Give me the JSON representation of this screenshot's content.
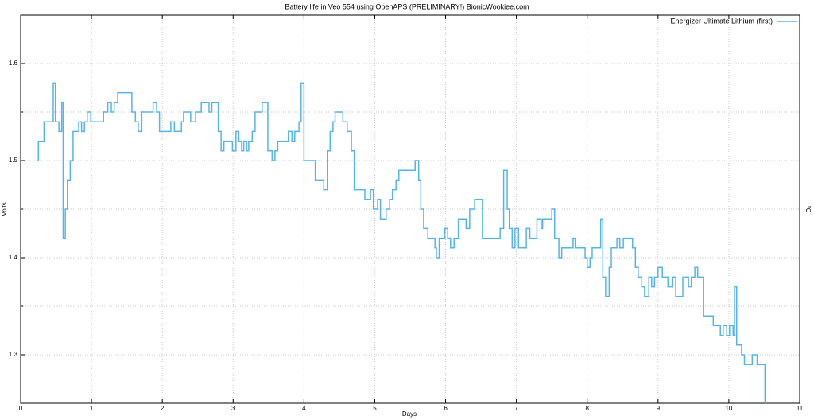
{
  "chart_data": {
    "type": "step",
    "title": "Battery life in Veo 554 using OpenAPS (PRELIMINARY!) BionicWookiee.com",
    "x_label": "Days",
    "y_label": "Volts",
    "y2_label": "°C",
    "xlim": [
      0,
      11
    ],
    "xticks": [
      0,
      1,
      2,
      3,
      4,
      5,
      6,
      7,
      8,
      9,
      10,
      11
    ],
    "ylim": [
      1.25,
      1.65
    ],
    "yticks": [
      1.3,
      1.4,
      1.5,
      1.6
    ],
    "yminorticks": [
      1.35,
      1.45,
      1.55
    ],
    "grid": true,
    "legend": "top-right",
    "series": [
      {
        "name": "Energizer Ultimate Lithium (first)",
        "color": "#56b4e9",
        "x": [
          0.24,
          0.25,
          0.33,
          0.46,
          0.49,
          0.54,
          0.58,
          0.6,
          0.63,
          0.66,
          0.7,
          0.74,
          0.82,
          0.86,
          0.9,
          0.94,
          0.99,
          1.17,
          1.23,
          1.28,
          1.32,
          1.37,
          1.57,
          1.62,
          1.66,
          1.71,
          1.87,
          1.92,
          1.96,
          2.12,
          2.17,
          2.27,
          2.3,
          2.4,
          2.47,
          2.55,
          2.66,
          2.7,
          2.79,
          2.83,
          2.87,
          2.99,
          3.04,
          3.08,
          3.12,
          3.15,
          3.19,
          3.22,
          3.27,
          3.31,
          3.41,
          3.49,
          3.55,
          3.59,
          3.63,
          3.78,
          3.83,
          3.87,
          3.93,
          3.96,
          4.0,
          4.16,
          4.28,
          4.33,
          4.37,
          4.41,
          4.44,
          4.55,
          4.61,
          4.67,
          4.71,
          4.86,
          4.94,
          4.98,
          5.04,
          5.08,
          5.16,
          5.21,
          5.25,
          5.3,
          5.34,
          5.57,
          5.62,
          5.65,
          5.69,
          5.75,
          5.85,
          5.87,
          5.91,
          5.99,
          6.03,
          6.07,
          6.12,
          6.18,
          6.29,
          6.34,
          6.41,
          6.52,
          6.77,
          6.82,
          6.87,
          6.9,
          6.94,
          6.98,
          7.03,
          7.14,
          7.19,
          7.29,
          7.35,
          7.37,
          7.5,
          7.54,
          7.6,
          7.64,
          7.8,
          7.83,
          7.97,
          8.0,
          8.04,
          8.07,
          8.19,
          8.22,
          8.26,
          8.31,
          8.34,
          8.42,
          8.46,
          8.51,
          8.64,
          8.68,
          8.72,
          8.77,
          8.81,
          8.87,
          8.91,
          8.95,
          9.0,
          9.06,
          9.14,
          9.2,
          9.25,
          9.35,
          9.43,
          9.47,
          9.52,
          9.56,
          9.64,
          9.78,
          9.88,
          9.92,
          9.97,
          10.01,
          10.06,
          10.08,
          10.11,
          10.18,
          10.22,
          10.33,
          10.4,
          10.51
        ],
        "values": [
          1.5,
          1.52,
          1.54,
          1.58,
          1.54,
          1.53,
          1.56,
          1.42,
          1.45,
          1.48,
          1.5,
          1.53,
          1.54,
          1.53,
          1.54,
          1.55,
          1.54,
          1.55,
          1.56,
          1.55,
          1.56,
          1.57,
          1.55,
          1.54,
          1.53,
          1.55,
          1.56,
          1.55,
          1.53,
          1.54,
          1.53,
          1.54,
          1.55,
          1.54,
          1.55,
          1.56,
          1.55,
          1.56,
          1.53,
          1.51,
          1.52,
          1.51,
          1.53,
          1.52,
          1.51,
          1.52,
          1.51,
          1.52,
          1.53,
          1.55,
          1.56,
          1.51,
          1.5,
          1.51,
          1.52,
          1.53,
          1.52,
          1.53,
          1.54,
          1.58,
          1.5,
          1.48,
          1.47,
          1.51,
          1.53,
          1.54,
          1.55,
          1.54,
          1.53,
          1.51,
          1.47,
          1.46,
          1.47,
          1.45,
          1.46,
          1.44,
          1.45,
          1.46,
          1.47,
          1.48,
          1.49,
          1.5,
          1.48,
          1.45,
          1.43,
          1.42,
          1.41,
          1.4,
          1.42,
          1.43,
          1.42,
          1.41,
          1.42,
          1.44,
          1.43,
          1.45,
          1.46,
          1.42,
          1.43,
          1.49,
          1.45,
          1.43,
          1.41,
          1.43,
          1.41,
          1.43,
          1.42,
          1.44,
          1.43,
          1.44,
          1.45,
          1.42,
          1.4,
          1.41,
          1.42,
          1.41,
          1.4,
          1.39,
          1.4,
          1.41,
          1.44,
          1.38,
          1.36,
          1.39,
          1.41,
          1.42,
          1.41,
          1.42,
          1.41,
          1.39,
          1.38,
          1.37,
          1.36,
          1.38,
          1.37,
          1.38,
          1.39,
          1.38,
          1.37,
          1.38,
          1.36,
          1.38,
          1.37,
          1.38,
          1.39,
          1.38,
          1.34,
          1.33,
          1.32,
          1.33,
          1.32,
          1.33,
          1.32,
          1.37,
          1.31,
          1.3,
          1.29,
          1.3,
          1.29,
          1.25
        ]
      }
    ]
  }
}
